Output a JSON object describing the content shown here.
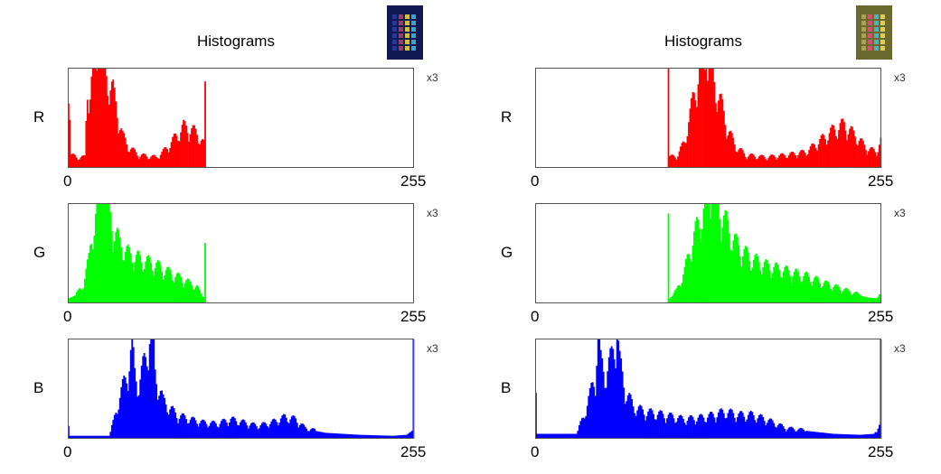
{
  "chart_data": [
    {
      "type": "bar",
      "title": "Histograms",
      "thumbnail_colors": [
        "#101a50",
        "#2840a0",
        "#c04060",
        "#f0e040",
        "#40c0e0"
      ],
      "channels": [
        {
          "label": "R",
          "color": "#ff0000",
          "scale_label": "x3",
          "xlim": [
            0,
            255
          ],
          "tick_labels": [
            "0",
            "255"
          ],
          "profile": [
            [
              0,
              90
            ],
            [
              2,
              12
            ],
            [
              6,
              10
            ],
            [
              12,
              10
            ],
            [
              14,
              75
            ],
            [
              16,
              70
            ],
            [
              18,
              88
            ],
            [
              20,
              95
            ],
            [
              22,
              100
            ],
            [
              25,
              100
            ],
            [
              27,
              88
            ],
            [
              30,
              80
            ],
            [
              33,
              70
            ],
            [
              36,
              52
            ],
            [
              40,
              30
            ],
            [
              44,
              20
            ],
            [
              52,
              12
            ],
            [
              65,
              10
            ],
            [
              70,
              15
            ],
            [
              75,
              22
            ],
            [
              80,
              30
            ],
            [
              85,
              38
            ],
            [
              90,
              36
            ],
            [
              95,
              32
            ],
            [
              100,
              22
            ],
            [
              101,
              70
            ],
            [
              102,
              0
            ],
            [
              255,
              0
            ]
          ]
        },
        {
          "label": "G",
          "color": "#00ff00",
          "scale_label": "x3",
          "xlim": [
            0,
            255
          ],
          "tick_labels": [
            "0",
            "255"
          ],
          "profile": [
            [
              0,
              5
            ],
            [
              5,
              8
            ],
            [
              10,
              15
            ],
            [
              15,
              40
            ],
            [
              18,
              70
            ],
            [
              20,
              82
            ],
            [
              22,
              95
            ],
            [
              24,
              100
            ],
            [
              28,
              100
            ],
            [
              30,
              85
            ],
            [
              33,
              70
            ],
            [
              38,
              55
            ],
            [
              45,
              45
            ],
            [
              55,
              40
            ],
            [
              65,
              35
            ],
            [
              75,
              28
            ],
            [
              85,
              22
            ],
            [
              95,
              15
            ],
            [
              100,
              5
            ],
            [
              101,
              62
            ],
            [
              102,
              0
            ],
            [
              255,
              0
            ]
          ]
        },
        {
          "label": "B",
          "color": "#0000ff",
          "scale_label": "x3",
          "xlim": [
            0,
            255
          ],
          "tick_labels": [
            "0",
            "255"
          ],
          "profile": [
            [
              0,
              15
            ],
            [
              1,
              3
            ],
            [
              30,
              3
            ],
            [
              33,
              15
            ],
            [
              37,
              35
            ],
            [
              42,
              55
            ],
            [
              45,
              70
            ],
            [
              47,
              85
            ],
            [
              49,
              60
            ],
            [
              52,
              50
            ],
            [
              57,
              75
            ],
            [
              60,
              95
            ],
            [
              62,
              100
            ],
            [
              64,
              60
            ],
            [
              70,
              35
            ],
            [
              80,
              22
            ],
            [
              90,
              18
            ],
            [
              100,
              15
            ],
            [
              110,
              14
            ],
            [
              120,
              18
            ],
            [
              130,
              15
            ],
            [
              140,
              12
            ],
            [
              150,
              15
            ],
            [
              160,
              20
            ],
            [
              168,
              18
            ],
            [
              175,
              10
            ],
            [
              190,
              6
            ],
            [
              215,
              4
            ],
            [
              240,
              3
            ],
            [
              250,
              4
            ],
            [
              254,
              8
            ],
            [
              255,
              80
            ]
          ]
        }
      ]
    },
    {
      "type": "bar",
      "title": "Histograms",
      "thumbnail_colors": [
        "#6a6a30",
        "#b0b050",
        "#e05070",
        "#40c0e0",
        "#f0e060"
      ],
      "channels": [
        {
          "label": "R",
          "color": "#ff0000",
          "scale_label": "x3",
          "xlim": [
            0,
            255
          ],
          "tick_labels": [
            "0",
            "255"
          ],
          "profile": [
            [
              0,
              0
            ],
            [
              97,
              0
            ],
            [
              98,
              100
            ],
            [
              99,
              10
            ],
            [
              105,
              12
            ],
            [
              110,
              25
            ],
            [
              115,
              55
            ],
            [
              118,
              75
            ],
            [
              122,
              95
            ],
            [
              126,
              100
            ],
            [
              130,
              90
            ],
            [
              134,
              70
            ],
            [
              138,
              55
            ],
            [
              142,
              35
            ],
            [
              148,
              20
            ],
            [
              155,
              12
            ],
            [
              170,
              10
            ],
            [
              185,
              12
            ],
            [
              200,
              15
            ],
            [
              210,
              25
            ],
            [
              220,
              35
            ],
            [
              228,
              40
            ],
            [
              236,
              30
            ],
            [
              245,
              18
            ],
            [
              252,
              15
            ],
            [
              255,
              25
            ]
          ]
        },
        {
          "label": "G",
          "color": "#00ff00",
          "scale_label": "x3",
          "xlim": [
            0,
            255
          ],
          "tick_labels": [
            "0",
            "255"
          ],
          "profile": [
            [
              0,
              0
            ],
            [
              97,
              0
            ],
            [
              98,
              80
            ],
            [
              99,
              5
            ],
            [
              104,
              12
            ],
            [
              110,
              30
            ],
            [
              115,
              55
            ],
            [
              120,
              72
            ],
            [
              125,
              90
            ],
            [
              130,
              100
            ],
            [
              134,
              95
            ],
            [
              140,
              75
            ],
            [
              148,
              55
            ],
            [
              158,
              42
            ],
            [
              170,
              35
            ],
            [
              185,
              30
            ],
            [
              200,
              25
            ],
            [
              215,
              18
            ],
            [
              230,
              12
            ],
            [
              245,
              6
            ],
            [
              252,
              5
            ],
            [
              255,
              10
            ]
          ]
        },
        {
          "label": "B",
          "color": "#0000ff",
          "scale_label": "x3",
          "xlim": [
            0,
            255
          ],
          "tick_labels": [
            "0",
            "255"
          ],
          "profile": [
            [
              0,
              55
            ],
            [
              1,
              5
            ],
            [
              30,
              5
            ],
            [
              35,
              20
            ],
            [
              40,
              40
            ],
            [
              44,
              60
            ],
            [
              46,
              95
            ],
            [
              48,
              70
            ],
            [
              52,
              60
            ],
            [
              56,
              75
            ],
            [
              60,
              100
            ],
            [
              62,
              70
            ],
            [
              66,
              45
            ],
            [
              72,
              30
            ],
            [
              80,
              25
            ],
            [
              95,
              22
            ],
            [
              110,
              18
            ],
            [
              125,
              20
            ],
            [
              140,
              25
            ],
            [
              150,
              22
            ],
            [
              160,
              22
            ],
            [
              170,
              18
            ],
            [
              185,
              10
            ],
            [
              200,
              8
            ],
            [
              220,
              5
            ],
            [
              240,
              4
            ],
            [
              250,
              5
            ],
            [
              254,
              12
            ],
            [
              255,
              100
            ]
          ]
        }
      ]
    }
  ]
}
